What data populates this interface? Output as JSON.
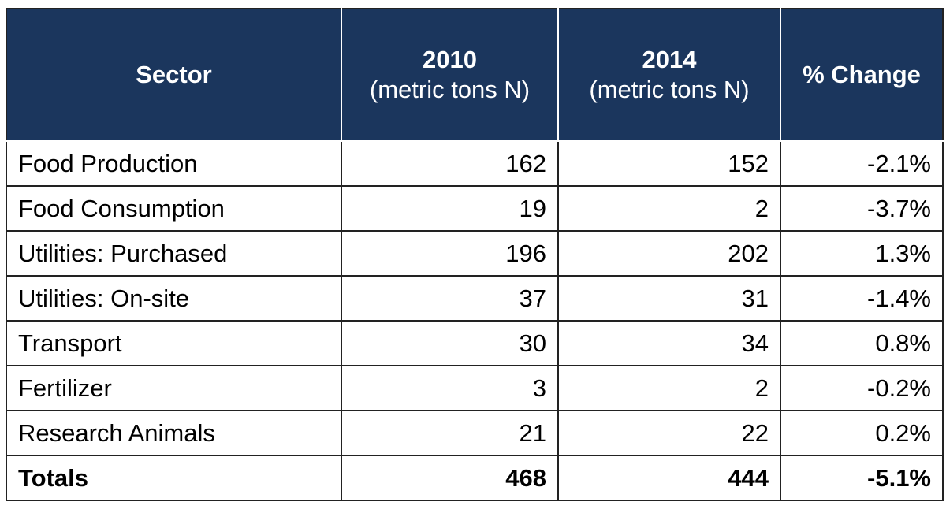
{
  "table": {
    "headers": [
      {
        "main": "Sector",
        "sub": ""
      },
      {
        "main": "2010",
        "sub": "(metric tons N)"
      },
      {
        "main": "2014",
        "sub": "(metric tons N)"
      },
      {
        "main": "% Change",
        "sub": ""
      }
    ],
    "rows": [
      {
        "sector": "Food Production",
        "y2010": "162",
        "y2014": "152",
        "change": "-2.1%"
      },
      {
        "sector": "Food Consumption",
        "y2010": "19",
        "y2014": "2",
        "change": "-3.7%"
      },
      {
        "sector": "Utilities: Purchased",
        "y2010": "196",
        "y2014": "202",
        "change": "1.3%"
      },
      {
        "sector": "Utilities: On-site",
        "y2010": "37",
        "y2014": "31",
        "change": "-1.4%"
      },
      {
        "sector": "Transport",
        "y2010": "30",
        "y2014": "34",
        "change": "0.8%"
      },
      {
        "sector": "Fertilizer",
        "y2010": "3",
        "y2014": "2",
        "change": "-0.2%"
      },
      {
        "sector": "Research Animals",
        "y2010": "21",
        "y2014": "22",
        "change": "0.2%"
      }
    ],
    "totals": {
      "sector": "Totals",
      "y2010": "468",
      "y2014": "444",
      "change": "-5.1%"
    }
  },
  "colors": {
    "header_background": "#1b365d",
    "header_text": "#ffffff",
    "border": "#222222"
  }
}
